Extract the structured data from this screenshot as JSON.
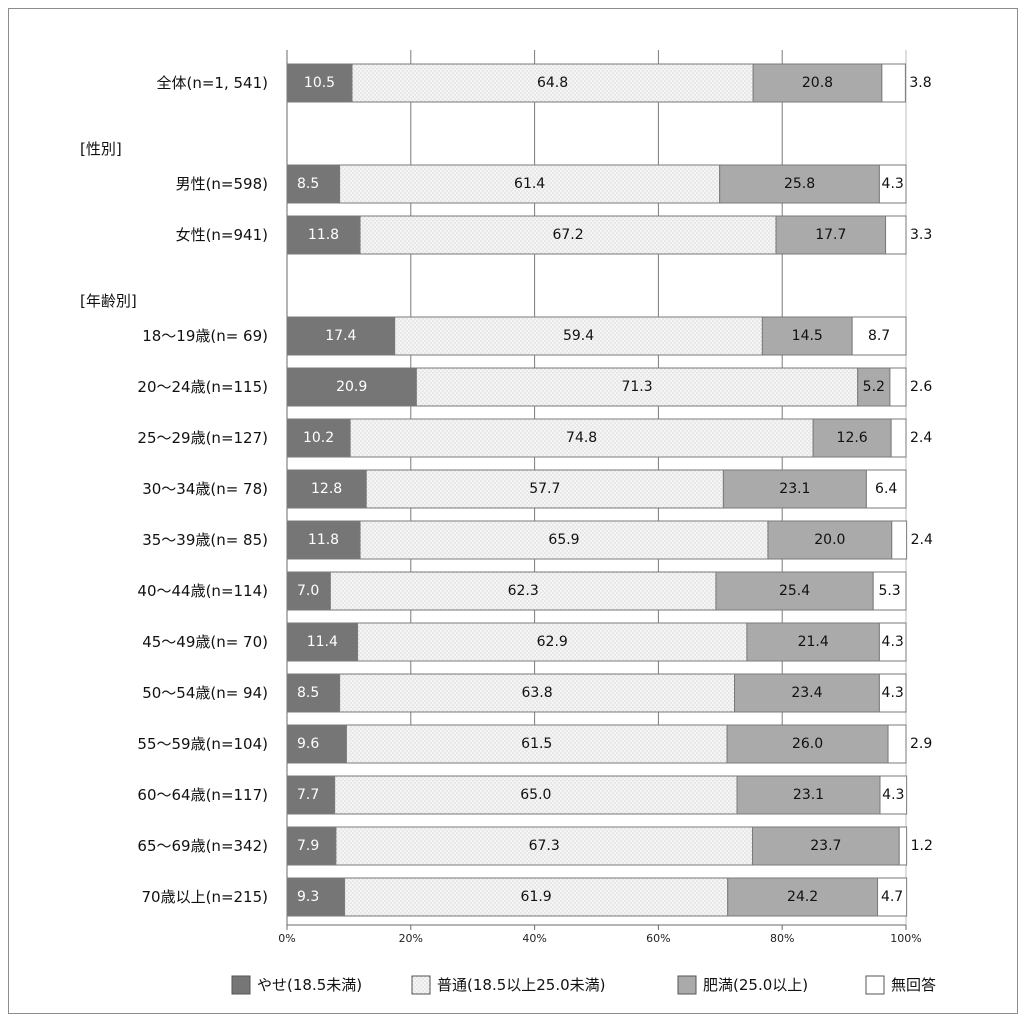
{
  "chart_data": {
    "type": "bar",
    "stacked": true,
    "orientation": "horizontal",
    "categories": [
      "全体(n=1, 541)",
      "男性(n=598)",
      "女性(n=941)",
      "18～19歳(n= 69)",
      "20～24歳(n=115)",
      "25～29歳(n=127)",
      "30～34歳(n= 78)",
      "35～39歳(n= 85)",
      "40～44歳(n=114)",
      "45～49歳(n= 70)",
      "50～54歳(n= 94)",
      "55～59歳(n=104)",
      "60～64歳(n=117)",
      "65～69歳(n=342)",
      "70歳以上(n=215)"
    ],
    "group_headers": [
      {
        "label": "[性別]",
        "before_index": 1
      },
      {
        "label": "[年齢別]",
        "before_index": 3
      }
    ],
    "series": [
      {
        "name": "やせ(18.5未満)",
        "color": "#767676",
        "values": [
          10.5,
          8.5,
          11.8,
          17.4,
          20.9,
          10.2,
          12.8,
          11.8,
          7.0,
          11.4,
          8.5,
          9.6,
          7.7,
          7.9,
          9.3
        ]
      },
      {
        "name": "普通(18.5以上25.0未満)",
        "color": "#f2f2f2",
        "values": [
          64.8,
          61.4,
          67.2,
          59.4,
          71.3,
          74.8,
          57.7,
          65.9,
          62.3,
          62.9,
          63.8,
          61.5,
          65.0,
          67.3,
          61.9
        ]
      },
      {
        "name": "肥満(25.0以上)",
        "color": "#aaaaaa",
        "values": [
          20.8,
          25.8,
          17.7,
          14.5,
          5.2,
          12.6,
          23.1,
          20.0,
          25.4,
          21.4,
          23.4,
          26.0,
          23.1,
          23.7,
          24.2
        ]
      },
      {
        "name": "無回答",
        "color": "#ffffff",
        "values": [
          3.8,
          4.3,
          3.3,
          8.7,
          2.6,
          2.4,
          6.4,
          2.4,
          5.3,
          4.3,
          4.3,
          2.9,
          4.3,
          1.2,
          4.7
        ]
      }
    ],
    "value_labels": [
      [
        "10.5",
        "64.8",
        "20.8",
        "3.8"
      ],
      [
        "8.5",
        "61.4",
        "25.8",
        "4.3"
      ],
      [
        "11.8",
        "67.2",
        "17.7",
        "3.3"
      ],
      [
        "17.4",
        "59.4",
        "14.5",
        "8.7"
      ],
      [
        "20.9",
        "71.3",
        "5.2",
        "2.6"
      ],
      [
        "10.2",
        "74.8",
        "12.6",
        "2.4"
      ],
      [
        "12.8",
        "57.7",
        "23.1",
        "6.4"
      ],
      [
        "11.8",
        "65.9",
        "20.0",
        "2.4"
      ],
      [
        "7.0",
        "62.3",
        "25.4",
        "5.3"
      ],
      [
        "11.4",
        "62.9",
        "21.4",
        "4.3"
      ],
      [
        "8.5",
        "63.8",
        "23.4",
        "4.3"
      ],
      [
        "9.6",
        "61.5",
        "26.0",
        "2.9"
      ],
      [
        "7.7",
        "65.0",
        "23.1",
        "4.3"
      ],
      [
        "7.9",
        "67.3",
        "23.7",
        "1.2"
      ],
      [
        "9.3",
        "61.9",
        "24.2",
        "4.7"
      ]
    ],
    "x_ticks": [
      "0%",
      "20%",
      "40%",
      "60%",
      "80%",
      "100%"
    ],
    "xlim": [
      0,
      100
    ],
    "grid": true,
    "legend_position": "bottom"
  }
}
